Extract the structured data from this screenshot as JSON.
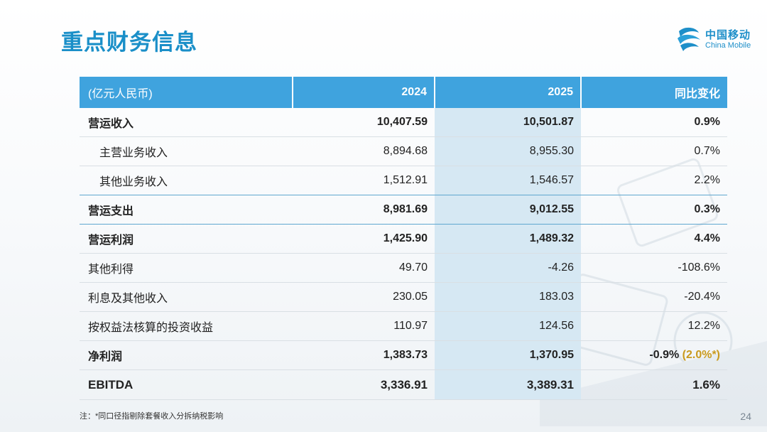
{
  "title": "重点财务信息",
  "logo": {
    "cn": "中国移动",
    "en": "China Mobile",
    "icon": "china-mobile-logo"
  },
  "table": {
    "headers": [
      "(亿元人民币)",
      "2024",
      "2025",
      "同比变化"
    ],
    "rows": [
      {
        "label": "营运收入",
        "v2024": "10,407.59",
        "v2025": "10,501.87",
        "change": "0.9%",
        "extra": ""
      },
      {
        "label": "主营业务收入",
        "v2024": "8,894.68",
        "v2025": "8,955.30",
        "change": "0.7%",
        "extra": ""
      },
      {
        "label": "其他业务收入",
        "v2024": "1,512.91",
        "v2025": "1,546.57",
        "change": "2.2%",
        "extra": ""
      },
      {
        "label": "营运支出",
        "v2024": "8,981.69",
        "v2025": "9,012.55",
        "change": "0.3%",
        "extra": ""
      },
      {
        "label": "营运利润",
        "v2024": "1,425.90",
        "v2025": "1,489.32",
        "change": "4.4%",
        "extra": ""
      },
      {
        "label": "其他利得",
        "v2024": "49.70",
        "v2025": "-4.26",
        "change": "-108.6%",
        "extra": ""
      },
      {
        "label": "利息及其他收入",
        "v2024": "230.05",
        "v2025": "183.03",
        "change": "-20.4%",
        "extra": ""
      },
      {
        "label": "按权益法核算的投资收益",
        "v2024": "110.97",
        "v2025": "124.56",
        "change": "12.2%",
        "extra": ""
      },
      {
        "label": "净利润",
        "v2024": "1,383.73",
        "v2025": "1,370.95",
        "change": "-0.9%",
        "extra": "(2.0%*)"
      },
      {
        "label": "EBITDA",
        "v2024": "3,336.91",
        "v2025": "3,389.31",
        "change": "1.6%",
        "extra": ""
      }
    ]
  },
  "footnote": "注：*同口径指剔除套餐收入分拆纳税影响",
  "page_number": "24",
  "colors": {
    "accent": "#1a8fc8",
    "header_bg": "#3fa3de",
    "highlight_col": "#d6e8f3",
    "gold": "#c99a1d"
  }
}
